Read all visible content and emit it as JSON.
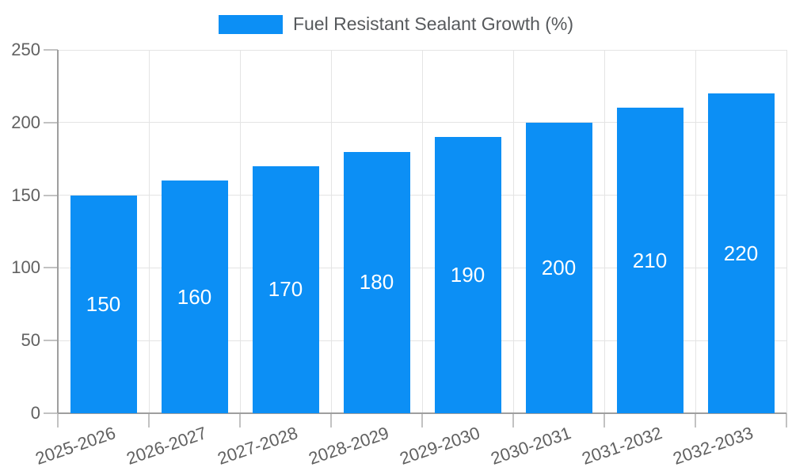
{
  "legend": {
    "label": "Fuel Resistant Sealant Growth (%)"
  },
  "colors": {
    "bar": "#0C8FF5",
    "grid": "#E4E4E4",
    "tick": "#C2C2C2",
    "axis": "#9E9E9E",
    "text": "#616161",
    "legend_text": "#56595C",
    "value_text": "#FFFFFF",
    "background": "#FFFFFF"
  },
  "chart_data": {
    "type": "bar",
    "title": "Fuel Resistant Sealant Growth (%)",
    "categories": [
      "2025-2026",
      "2026-2027",
      "2027-2028",
      "2028-2029",
      "2029-2030",
      "2030-2031",
      "2031-2032",
      "2032-2033"
    ],
    "values": [
      150,
      160,
      170,
      180,
      190,
      200,
      210,
      220
    ],
    "xlabel": "",
    "ylabel": "",
    "ylim": [
      0,
      250
    ],
    "yticks": [
      0,
      50,
      100,
      150,
      200,
      250
    ],
    "grid": true,
    "legend_position": "top",
    "value_labels": "inside-center",
    "x_label_rotation_deg": -19
  }
}
